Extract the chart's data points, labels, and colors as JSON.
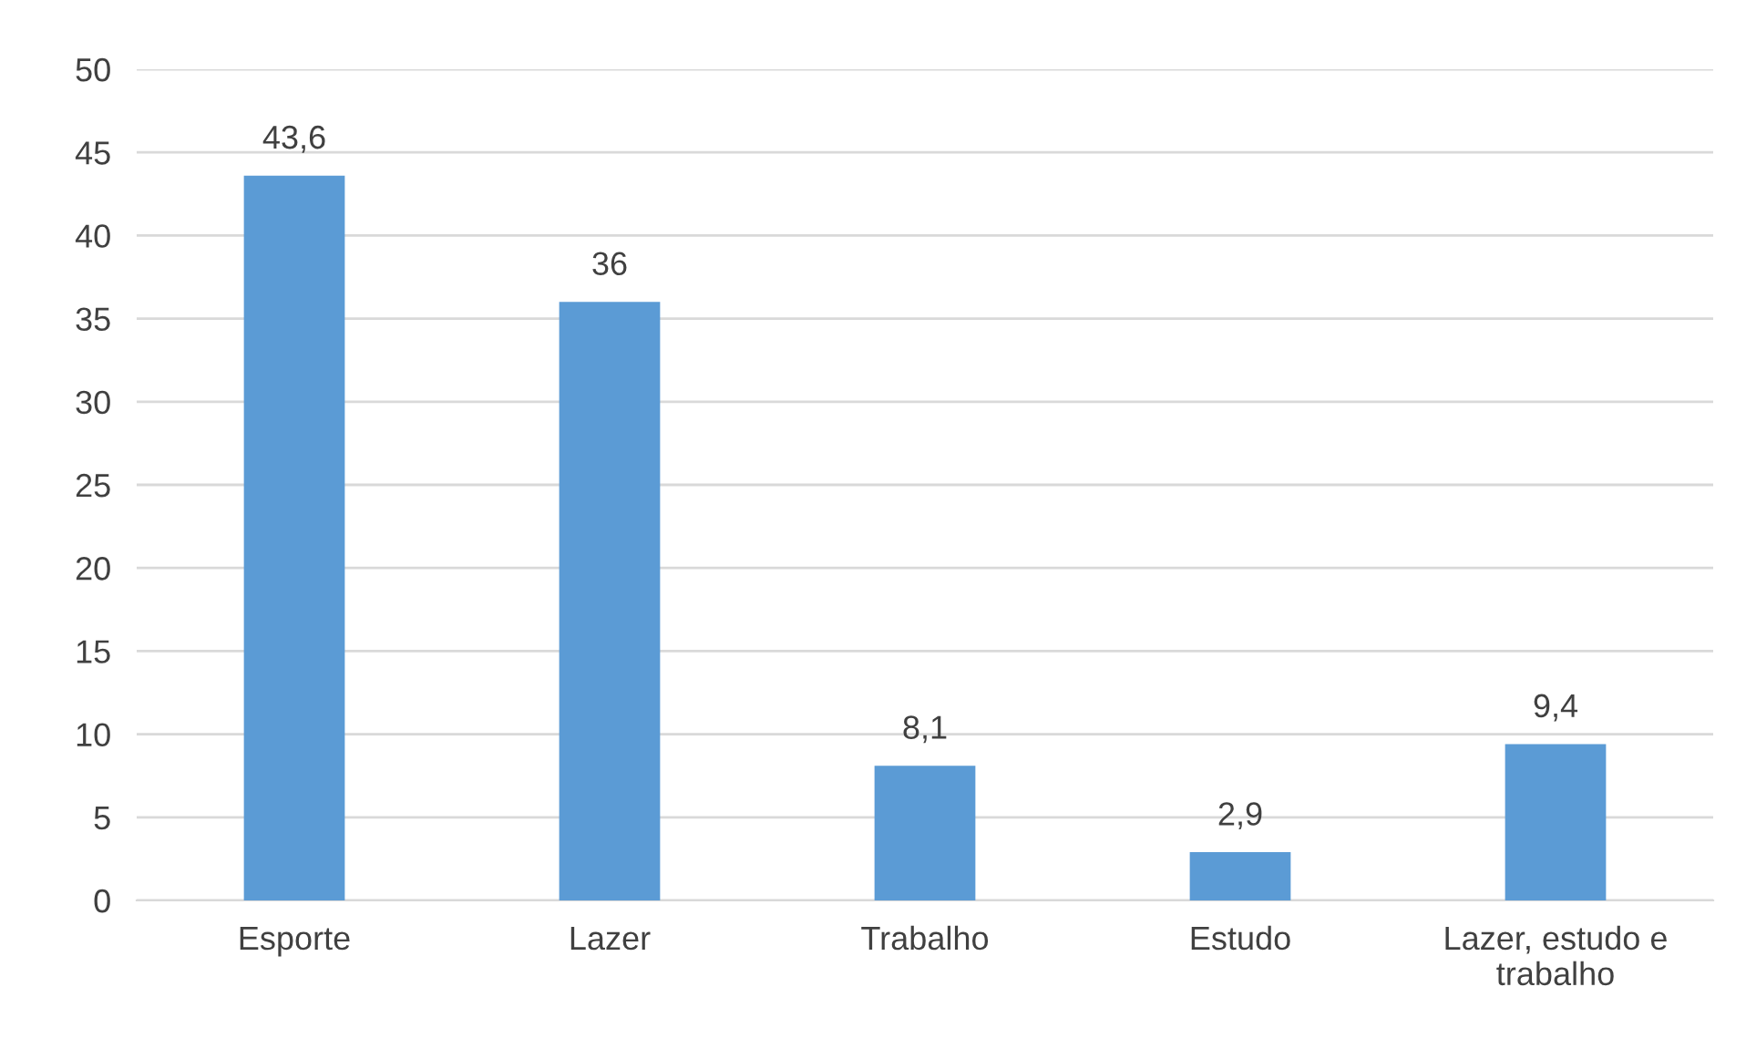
{
  "chart_data": {
    "type": "bar",
    "categories": [
      "Esporte",
      "Lazer",
      "Trabalho",
      "Estudo",
      "Lazer, estudo e\ntrabalho"
    ],
    "values": [
      43.6,
      36,
      8.1,
      2.9,
      9.4
    ],
    "value_labels": [
      "43,6",
      "36",
      "8,1",
      "2,9",
      "9,4"
    ],
    "color": "#5b9bd5",
    "ylim": [
      0,
      50
    ],
    "yticks": [
      0,
      5,
      10,
      15,
      20,
      25,
      30,
      35,
      40,
      45,
      50
    ],
    "grid": "y",
    "legend": false
  }
}
